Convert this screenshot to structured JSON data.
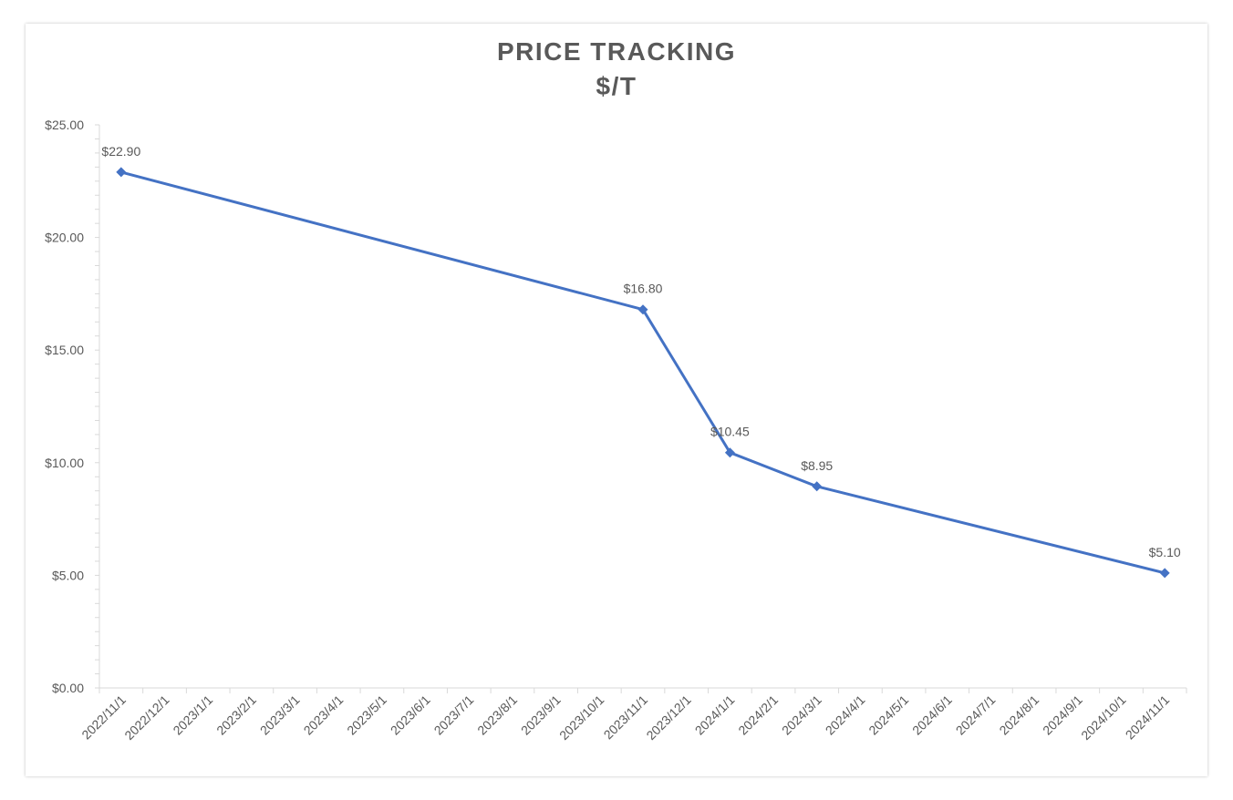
{
  "chart_data": {
    "type": "line",
    "title": "PRICE TRACKING",
    "subtitle": "$/T",
    "xlabel": "",
    "ylabel": "",
    "x_axis": {
      "kind": "date",
      "tick_labels": [
        "2022/11/1",
        "2022/12/1",
        "2023/1/1",
        "2023/2/1",
        "2023/3/1",
        "2023/4/1",
        "2023/5/1",
        "2023/6/1",
        "2023/7/1",
        "2023/8/1",
        "2023/9/1",
        "2023/10/1",
        "2023/11/1",
        "2023/12/1",
        "2024/1/1",
        "2024/2/1",
        "2024/3/1",
        "2024/4/1",
        "2024/5/1",
        "2024/6/1",
        "2024/7/1",
        "2024/8/1",
        "2024/9/1",
        "2024/10/1",
        "2024/11/1"
      ]
    },
    "y_axis": {
      "ylim": [
        0,
        25
      ],
      "tick_values": [
        0,
        5,
        10,
        15,
        20,
        25
      ],
      "tick_labels": [
        "$0.00",
        "$5.00",
        "$10.00",
        "$15.00",
        "$20.00",
        "$25.00"
      ]
    },
    "series": [
      {
        "color": "#4472C4",
        "marker": "diamond",
        "points": [
          {
            "x": "2022/11/1",
            "y": 22.9,
            "label": "$22.90"
          },
          {
            "x": "2023/11/1",
            "y": 16.8,
            "label": "$16.80"
          },
          {
            "x": "2024/1/1",
            "y": 10.45,
            "label": "$10.45"
          },
          {
            "x": "2024/3/1",
            "y": 8.95,
            "label": "$8.95"
          },
          {
            "x": "2024/11/1",
            "y": 5.1,
            "label": "$5.10"
          }
        ]
      }
    ],
    "grid": false,
    "legend": "none"
  }
}
